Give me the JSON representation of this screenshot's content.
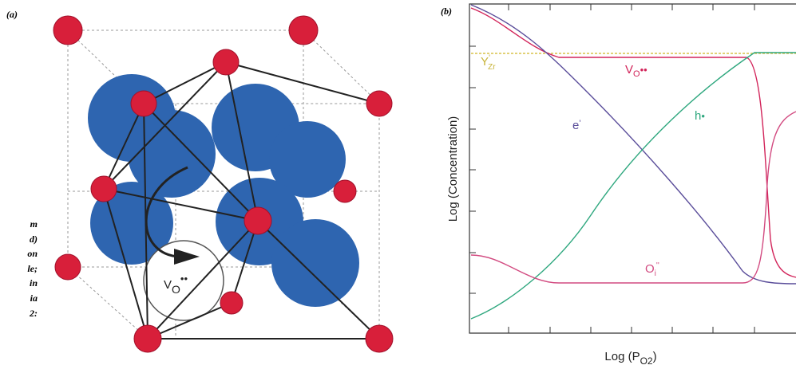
{
  "caption_fragments": [
    "m",
    "d)",
    "on",
    "le;",
    "in",
    "ia",
    "2:"
  ],
  "panel_a": {
    "label": "(a)",
    "vacancy": {
      "base": "V",
      "sub": "O",
      "sup": "••"
    }
  },
  "panel_b": {
    "label": "(b)",
    "y_label": "Log (Concentration)",
    "x_label": {
      "base": "Log (P",
      "sub": "O2",
      "close": ")"
    },
    "curves": {
      "yttrium": {
        "base": "Y",
        "sup": "'",
        "sub": "Zr"
      },
      "vacancy": {
        "base": "V",
        "sub": "O",
        "sup": "••"
      },
      "hole": {
        "base": "h",
        "sup": "•"
      },
      "electron": {
        "base": "e",
        "sup": "'"
      },
      "interstitial": {
        "base": "O",
        "sub": "i",
        "sup": "''"
      }
    }
  }
}
